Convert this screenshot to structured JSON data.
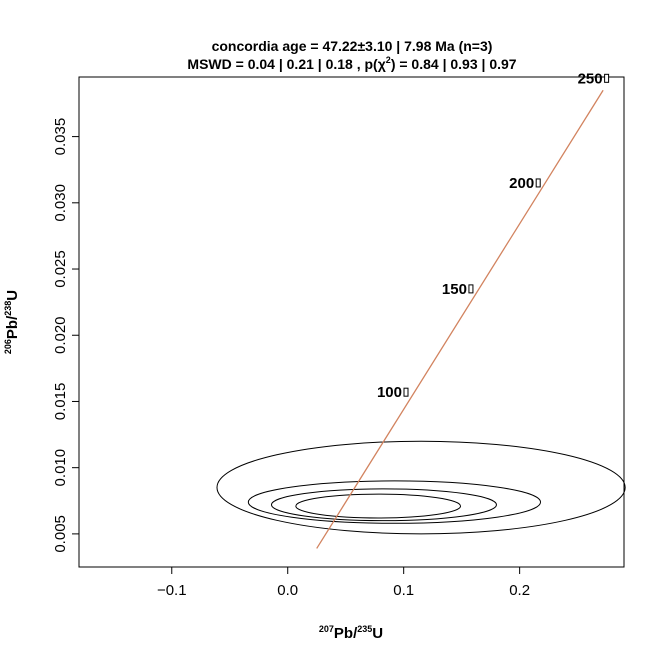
{
  "chart_data": {
    "type": "scatter",
    "title": {
      "prefix": "concordia age = ",
      "value": "47.22",
      "pm": "±",
      "errors": "3.10 | 7.98 Ma (n=3)"
    },
    "subtitle": {
      "prefix": "MSWD = 0.04 | 0.21 | 0.18 , p(",
      "chi": "χ",
      "sup": "2",
      "suffix": ") = 0.84 | 0.93 | 0.97"
    },
    "xlabel": {
      "sup": "207",
      "main": "Pb/",
      "sup2": "235",
      "tail": "U"
    },
    "ylabel": {
      "sup": "206",
      "main": "Pb/",
      "sup2": "238",
      "tail": "U"
    },
    "xlim": [
      -0.18,
      0.29
    ],
    "ylim": [
      0.0025,
      0.0395
    ],
    "x_ticks": [
      -0.1,
      0.0,
      0.1,
      0.2
    ],
    "x_tick_labels": [
      "−0.1",
      "0.0",
      "0.1",
      "0.2"
    ],
    "y_ticks": [
      0.005,
      0.01,
      0.015,
      0.02,
      0.025,
      0.03,
      0.035
    ],
    "y_tick_labels": [
      "0.005",
      "0.010",
      "0.015",
      "0.020",
      "0.025",
      "0.030",
      "0.035"
    ],
    "grid": false,
    "concordia": {
      "color": "#d2835f",
      "x": [
        0.025,
        0.272
      ],
      "y": [
        0.0039,
        0.0385
      ]
    },
    "age_markers": [
      {
        "label": "100",
        "x": 0.102,
        "y": 0.0157
      },
      {
        "label": "150",
        "x": 0.158,
        "y": 0.0235
      },
      {
        "label": "200",
        "x": 0.216,
        "y": 0.0315
      },
      {
        "label": "250",
        "x": 0.275,
        "y": 0.0394
      }
    ],
    "ellipses": [
      {
        "cx": 0.115,
        "cy": 0.0085,
        "rx": 0.176,
        "ry": 0.0035
      },
      {
        "cx": 0.092,
        "cy": 0.0074,
        "rx": 0.126,
        "ry": 0.0016
      },
      {
        "cx": 0.083,
        "cy": 0.0072,
        "rx": 0.097,
        "ry": 0.0012
      },
      {
        "cx": 0.078,
        "cy": 0.0071,
        "rx": 0.071,
        "ry": 0.0009
      }
    ]
  }
}
